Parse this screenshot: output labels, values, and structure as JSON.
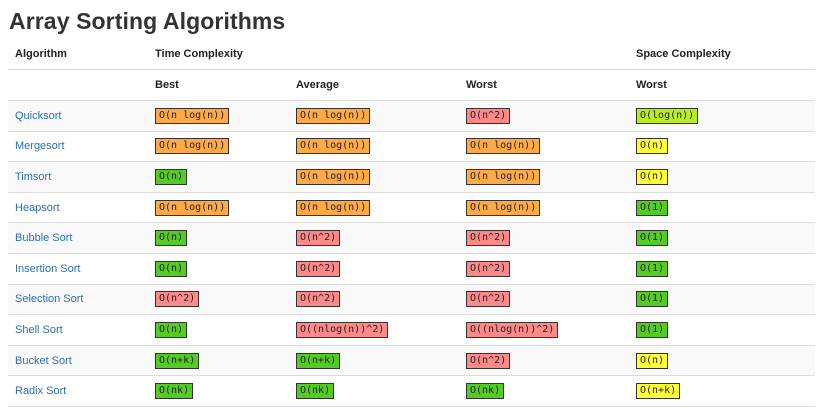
{
  "page": {
    "title": "Array Sorting Algorithms"
  },
  "colors": {
    "good": "#55cc22",
    "fair": "#ffff33",
    "so-so": "#ffaa44",
    "bad": "#ff8888",
    "link": "#2a6fb0",
    "ok": "#bbee22"
  },
  "table": {
    "headers": {
      "algorithm": "Algorithm",
      "time_complexity": "Time Complexity",
      "space_complexity": "Space Complexity",
      "best": "Best",
      "average": "Average",
      "worst": "Worst",
      "space_worst": "Worst"
    },
    "rows": [
      {
        "name": "Quicksort",
        "best": {
          "text": "O(n log(n))",
          "rating": "so-so"
        },
        "average": {
          "text": "O(n log(n))",
          "rating": "so-so"
        },
        "worst": {
          "text": "O(n^2)",
          "rating": "bad"
        },
        "space": {
          "text": "O(log(n))",
          "rating": "ok"
        }
      },
      {
        "name": "Mergesort",
        "best": {
          "text": "O(n log(n))",
          "rating": "so-so"
        },
        "average": {
          "text": "O(n log(n))",
          "rating": "so-so"
        },
        "worst": {
          "text": "O(n log(n))",
          "rating": "so-so"
        },
        "space": {
          "text": "O(n)",
          "rating": "fair"
        }
      },
      {
        "name": "Timsort",
        "best": {
          "text": "O(n)",
          "rating": "good"
        },
        "average": {
          "text": "O(n log(n))",
          "rating": "so-so"
        },
        "worst": {
          "text": "O(n log(n))",
          "rating": "so-so"
        },
        "space": {
          "text": "O(n)",
          "rating": "fair"
        }
      },
      {
        "name": "Heapsort",
        "best": {
          "text": "O(n log(n))",
          "rating": "so-so"
        },
        "average": {
          "text": "O(n log(n))",
          "rating": "so-so"
        },
        "worst": {
          "text": "O(n log(n))",
          "rating": "so-so"
        },
        "space": {
          "text": "O(1)",
          "rating": "good"
        }
      },
      {
        "name": "Bubble Sort",
        "best": {
          "text": "O(n)",
          "rating": "good"
        },
        "average": {
          "text": "O(n^2)",
          "rating": "bad"
        },
        "worst": {
          "text": "O(n^2)",
          "rating": "bad"
        },
        "space": {
          "text": "O(1)",
          "rating": "good"
        }
      },
      {
        "name": "Insertion Sort",
        "best": {
          "text": "O(n)",
          "rating": "good"
        },
        "average": {
          "text": "O(n^2)",
          "rating": "bad"
        },
        "worst": {
          "text": "O(n^2)",
          "rating": "bad"
        },
        "space": {
          "text": "O(1)",
          "rating": "good"
        }
      },
      {
        "name": "Selection Sort",
        "best": {
          "text": "O(n^2)",
          "rating": "bad"
        },
        "average": {
          "text": "O(n^2)",
          "rating": "bad"
        },
        "worst": {
          "text": "O(n^2)",
          "rating": "bad"
        },
        "space": {
          "text": "O(1)",
          "rating": "good"
        }
      },
      {
        "name": "Shell Sort",
        "best": {
          "text": "O(n)",
          "rating": "good"
        },
        "average": {
          "text": "O((nlog(n))^2)",
          "rating": "bad"
        },
        "worst": {
          "text": "O((nlog(n))^2)",
          "rating": "bad"
        },
        "space": {
          "text": "O(1)",
          "rating": "good"
        }
      },
      {
        "name": "Bucket Sort",
        "best": {
          "text": "O(n+k)",
          "rating": "good"
        },
        "average": {
          "text": "O(n+k)",
          "rating": "good"
        },
        "worst": {
          "text": "O(n^2)",
          "rating": "bad"
        },
        "space": {
          "text": "O(n)",
          "rating": "fair"
        }
      },
      {
        "name": "Radix Sort",
        "best": {
          "text": "O(nk)",
          "rating": "good"
        },
        "average": {
          "text": "O(nk)",
          "rating": "good"
        },
        "worst": {
          "text": "O(nk)",
          "rating": "good"
        },
        "space": {
          "text": "O(n+k)",
          "rating": "fair"
        }
      }
    ]
  }
}
